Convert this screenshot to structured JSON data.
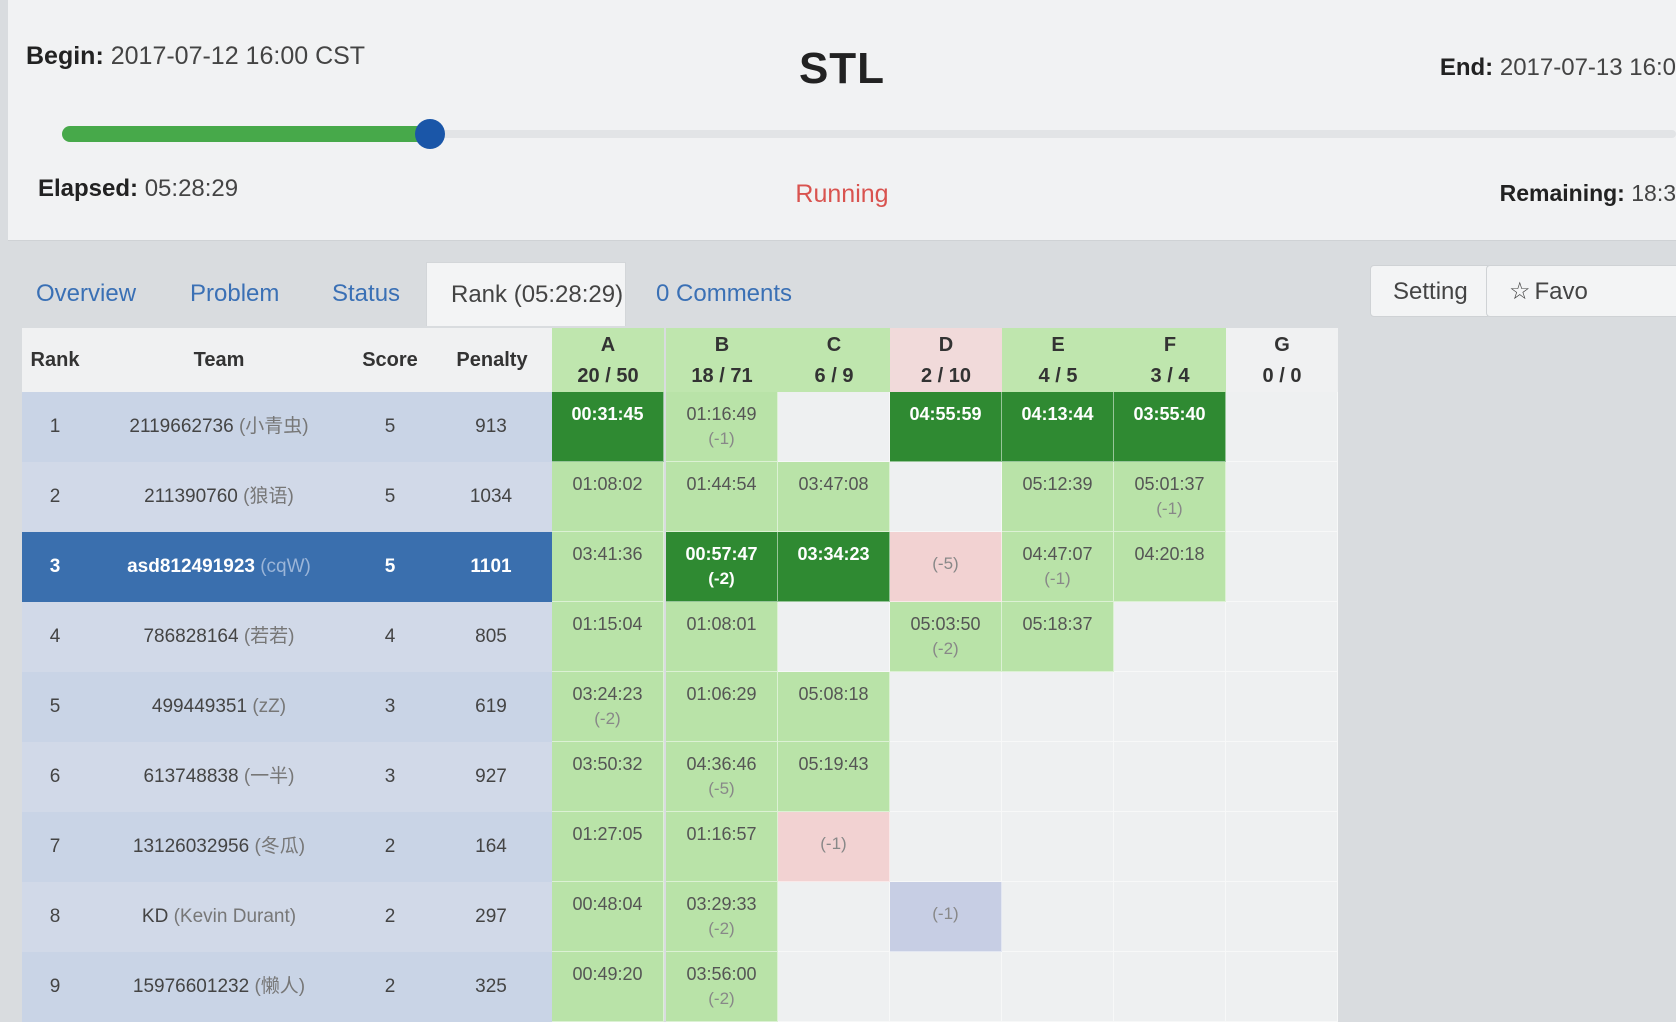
{
  "contest": {
    "title": "STL",
    "begin_label": "Begin:",
    "begin_value": "2017-07-12 16:00 CST",
    "end_label": "End:",
    "end_value": "2017-07-13 16:0",
    "elapsed_label": "Elapsed:",
    "elapsed_value": "05:28:29",
    "remaining_label": "Remaining:",
    "remaining_value": "18:3",
    "status": "Running",
    "progress": 0.228,
    "colors": {
      "progress": "#47a94a",
      "handle": "#1a56a8",
      "status": "#d9534f",
      "first_blood": "#2f8a32",
      "accepted": "#b9e3a8",
      "wrong": "#f2d2d2"
    }
  },
  "tabs": [
    {
      "label": "Overview",
      "active": false
    },
    {
      "label": "Problem",
      "active": false
    },
    {
      "label": "Status",
      "active": false
    },
    {
      "label": "Rank (05:28:29)",
      "active": true
    },
    {
      "label": "0 Comments",
      "active": false
    }
  ],
  "buttons": {
    "setting": "Setting",
    "favorite": "Favo",
    "favorite_icon": "star-icon"
  },
  "table": {
    "headers": {
      "rank": "Rank",
      "team": "Team",
      "score": "Score",
      "penalty": "Penalty"
    },
    "problems": [
      {
        "letter": "A",
        "ratio": "20 / 50"
      },
      {
        "letter": "B",
        "ratio": "18 / 71"
      },
      {
        "letter": "C",
        "ratio": "6 / 9"
      },
      {
        "letter": "D",
        "ratio": "2 / 10"
      },
      {
        "letter": "E",
        "ratio": "4 / 5"
      },
      {
        "letter": "F",
        "ratio": "3 / 4"
      },
      {
        "letter": "G",
        "ratio": "0 / 0"
      }
    ],
    "rows": [
      {
        "rank": "1",
        "team": "2119662736",
        "nick": "(小青虫)",
        "score": "5",
        "penalty": "913",
        "cells": [
          {
            "state": "fb",
            "time": "00:31:45",
            "tries": ""
          },
          {
            "state": "ac",
            "time": "01:16:49",
            "tries": "(-1)"
          },
          {
            "state": "empty",
            "time": "",
            "tries": ""
          },
          {
            "state": "fb",
            "time": "04:55:59",
            "tries": ""
          },
          {
            "state": "fb",
            "time": "04:13:44",
            "tries": ""
          },
          {
            "state": "fb",
            "time": "03:55:40",
            "tries": ""
          },
          {
            "state": "empty",
            "time": "",
            "tries": ""
          }
        ]
      },
      {
        "rank": "2",
        "team": "211390760",
        "nick": "(狼语)",
        "score": "5",
        "penalty": "1034",
        "cells": [
          {
            "state": "ac",
            "time": "01:08:02",
            "tries": ""
          },
          {
            "state": "ac",
            "time": "01:44:54",
            "tries": ""
          },
          {
            "state": "ac",
            "time": "03:47:08",
            "tries": ""
          },
          {
            "state": "empty",
            "time": "",
            "tries": ""
          },
          {
            "state": "ac",
            "time": "05:12:39",
            "tries": ""
          },
          {
            "state": "ac",
            "time": "05:01:37",
            "tries": "(-1)"
          },
          {
            "state": "empty",
            "time": "",
            "tries": ""
          }
        ]
      },
      {
        "rank": "3",
        "team": "asd812491923",
        "nick": "(cqW)",
        "score": "5",
        "penalty": "1101",
        "me": true,
        "cells": [
          {
            "state": "ac",
            "time": "03:41:36",
            "tries": ""
          },
          {
            "state": "fb",
            "time": "00:57:47",
            "tries": "(-2)"
          },
          {
            "state": "fb",
            "time": "03:34:23",
            "tries": ""
          },
          {
            "state": "wa",
            "time": "",
            "tries": "(-5)"
          },
          {
            "state": "ac",
            "time": "04:47:07",
            "tries": "(-1)"
          },
          {
            "state": "ac",
            "time": "04:20:18",
            "tries": ""
          },
          {
            "state": "empty",
            "time": "",
            "tries": ""
          }
        ]
      },
      {
        "rank": "4",
        "team": "786828164",
        "nick": "(若若)",
        "score": "4",
        "penalty": "805",
        "cells": [
          {
            "state": "ac",
            "time": "01:15:04",
            "tries": ""
          },
          {
            "state": "ac",
            "time": "01:08:01",
            "tries": ""
          },
          {
            "state": "empty",
            "time": "",
            "tries": ""
          },
          {
            "state": "ac",
            "time": "05:03:50",
            "tries": "(-2)"
          },
          {
            "state": "ac",
            "time": "05:18:37",
            "tries": ""
          },
          {
            "state": "empty",
            "time": "",
            "tries": ""
          },
          {
            "state": "empty",
            "time": "",
            "tries": ""
          }
        ]
      },
      {
        "rank": "5",
        "team": "499449351",
        "nick": "(zZ)",
        "score": "3",
        "penalty": "619",
        "cells": [
          {
            "state": "ac",
            "time": "03:24:23",
            "tries": "(-2)"
          },
          {
            "state": "ac",
            "time": "01:06:29",
            "tries": ""
          },
          {
            "state": "ac",
            "time": "05:08:18",
            "tries": ""
          },
          {
            "state": "empty",
            "time": "",
            "tries": ""
          },
          {
            "state": "empty",
            "time": "",
            "tries": ""
          },
          {
            "state": "empty",
            "time": "",
            "tries": ""
          },
          {
            "state": "empty",
            "time": "",
            "tries": ""
          }
        ]
      },
      {
        "rank": "6",
        "team": "613748838",
        "nick": "(一半)",
        "score": "3",
        "penalty": "927",
        "cells": [
          {
            "state": "ac",
            "time": "03:50:32",
            "tries": ""
          },
          {
            "state": "ac",
            "time": "04:36:46",
            "tries": "(-5)"
          },
          {
            "state": "ac",
            "time": "05:19:43",
            "tries": ""
          },
          {
            "state": "empty",
            "time": "",
            "tries": ""
          },
          {
            "state": "empty",
            "time": "",
            "tries": ""
          },
          {
            "state": "empty",
            "time": "",
            "tries": ""
          },
          {
            "state": "empty",
            "time": "",
            "tries": ""
          }
        ]
      },
      {
        "rank": "7",
        "team": "13126032956",
        "nick": "(冬瓜)",
        "score": "2",
        "penalty": "164",
        "cells": [
          {
            "state": "ac",
            "time": "01:27:05",
            "tries": ""
          },
          {
            "state": "ac",
            "time": "01:16:57",
            "tries": ""
          },
          {
            "state": "wa",
            "time": "",
            "tries": "(-1)"
          },
          {
            "state": "empty",
            "time": "",
            "tries": ""
          },
          {
            "state": "empty",
            "time": "",
            "tries": ""
          },
          {
            "state": "empty",
            "time": "",
            "tries": ""
          },
          {
            "state": "empty",
            "time": "",
            "tries": ""
          }
        ]
      },
      {
        "rank": "8",
        "team": "KD",
        "nick": "(Kevin Durant)",
        "score": "2",
        "penalty": "297",
        "cells": [
          {
            "state": "ac",
            "time": "00:48:04",
            "tries": ""
          },
          {
            "state": "ac",
            "time": "03:29:33",
            "tries": "(-2)"
          },
          {
            "state": "empty",
            "time": "",
            "tries": ""
          },
          {
            "state": "pd",
            "time": "",
            "tries": "(-1)"
          },
          {
            "state": "empty",
            "time": "",
            "tries": ""
          },
          {
            "state": "empty",
            "time": "",
            "tries": ""
          },
          {
            "state": "empty",
            "time": "",
            "tries": ""
          }
        ]
      },
      {
        "rank": "9",
        "team": "15976601232",
        "nick": "(懒人)",
        "score": "2",
        "penalty": "325",
        "cells": [
          {
            "state": "ac",
            "time": "00:49:20",
            "tries": ""
          },
          {
            "state": "ac",
            "time": "03:56:00",
            "tries": "(-2)"
          },
          {
            "state": "empty",
            "time": "",
            "tries": ""
          },
          {
            "state": "empty",
            "time": "",
            "tries": ""
          },
          {
            "state": "empty",
            "time": "",
            "tries": ""
          },
          {
            "state": "empty",
            "time": "",
            "tries": ""
          },
          {
            "state": "empty",
            "time": "",
            "tries": ""
          }
        ]
      }
    ]
  }
}
